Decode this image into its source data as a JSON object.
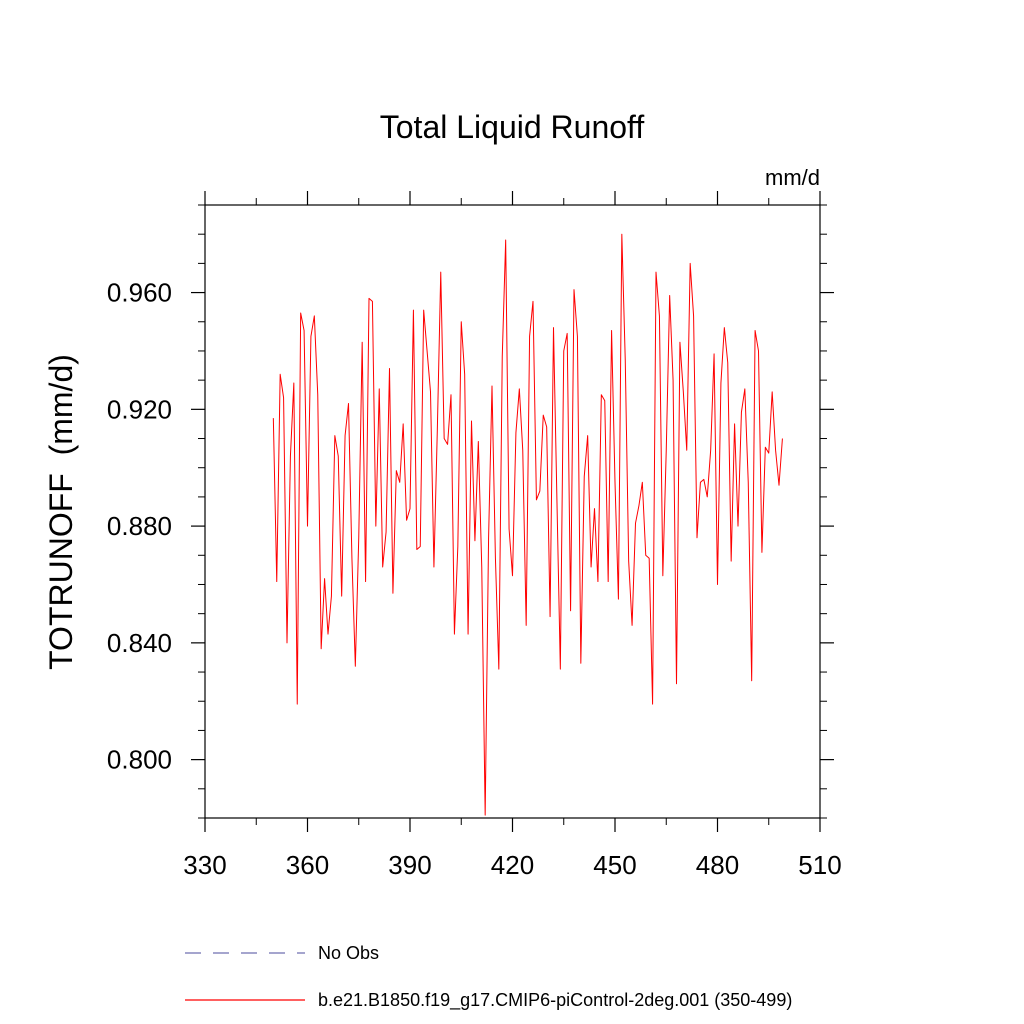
{
  "chart_data": {
    "type": "line",
    "title": "Total Liquid Runoff",
    "units_label": "mm/d",
    "ylabel": "TOTRUNOFF  (mm/d)",
    "xlabel": "",
    "xlim": [
      330,
      510
    ],
    "ylim": [
      0.78,
      0.99
    ],
    "x_ticks": [
      330,
      360,
      390,
      420,
      450,
      480,
      510
    ],
    "x_tick_labels": [
      "330",
      "360",
      "390",
      "420",
      "450",
      "480",
      "510"
    ],
    "y_ticks": [
      0.8,
      0.84,
      0.88,
      0.92,
      0.96
    ],
    "y_tick_labels": [
      "0.800",
      "0.840",
      "0.880",
      "0.920",
      "0.960"
    ],
    "grid": false,
    "legend_position": "bottom",
    "legend": [
      {
        "label": "No Obs",
        "color": "#6f6fb0",
        "dash": "dashed"
      },
      {
        "label": "b.e21.B1850.f19_g17.CMIP6-piControl-2deg.001 (350-499)",
        "color": "#ff0000",
        "dash": "solid"
      }
    ],
    "series": [
      {
        "name": "b.e21.B1850.f19_g17.CMIP6-piControl-2deg.001 (350-499)",
        "color": "#ff0000",
        "x_start": 350,
        "x_step": 1,
        "values": [
          0.917,
          0.861,
          0.932,
          0.924,
          0.84,
          0.904,
          0.929,
          0.819,
          0.953,
          0.947,
          0.88,
          0.945,
          0.952,
          0.925,
          0.838,
          0.862,
          0.843,
          0.856,
          0.911,
          0.904,
          0.856,
          0.911,
          0.922,
          0.869,
          0.832,
          0.876,
          0.943,
          0.861,
          0.958,
          0.957,
          0.88,
          0.927,
          0.866,
          0.878,
          0.934,
          0.857,
          0.899,
          0.895,
          0.915,
          0.882,
          0.886,
          0.954,
          0.872,
          0.873,
          0.954,
          0.94,
          0.926,
          0.866,
          0.913,
          0.967,
          0.91,
          0.908,
          0.925,
          0.843,
          0.873,
          0.95,
          0.932,
          0.843,
          0.916,
          0.875,
          0.909,
          0.866,
          0.781,
          0.876,
          0.928,
          0.869,
          0.831,
          0.938,
          0.978,
          0.879,
          0.863,
          0.912,
          0.927,
          0.906,
          0.846,
          0.945,
          0.957,
          0.889,
          0.892,
          0.918,
          0.914,
          0.849,
          0.948,
          0.889,
          0.831,
          0.94,
          0.946,
          0.851,
          0.961,
          0.945,
          0.833,
          0.897,
          0.911,
          0.866,
          0.886,
          0.861,
          0.925,
          0.923,
          0.861,
          0.947,
          0.895,
          0.855,
          0.98,
          0.937,
          0.868,
          0.846,
          0.881,
          0.887,
          0.895,
          0.87,
          0.869,
          0.819,
          0.967,
          0.952,
          0.863,
          0.906,
          0.959,
          0.93,
          0.826,
          0.943,
          0.926,
          0.906,
          0.97,
          0.952,
          0.876,
          0.895,
          0.896,
          0.89,
          0.906,
          0.939,
          0.86,
          0.929,
          0.948,
          0.936,
          0.868,
          0.915,
          0.88,
          0.919,
          0.927,
          0.895,
          0.827,
          0.947,
          0.94,
          0.871,
          0.907,
          0.905,
          0.926,
          0.906,
          0.894,
          0.91
        ]
      }
    ]
  }
}
